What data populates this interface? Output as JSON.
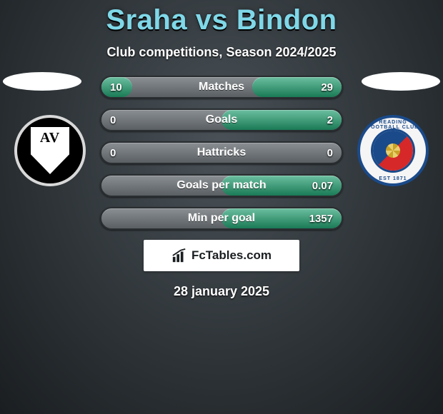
{
  "title": "Sraha vs Bindon",
  "subtitle": "Club competitions, Season 2024/2025",
  "date": "28 january 2025",
  "brand": "FcTables.com",
  "colors": {
    "accent": "#7fd8e8",
    "bar_fill": "#1a7a56",
    "bar_bg": "#6a6f73"
  },
  "crest_left": {
    "initials": "AV"
  },
  "crest_right": {
    "ring_top": "READING FOOTBALL CLUB",
    "ring_bottom": "EST 1871"
  },
  "stats": [
    {
      "label": "Matches",
      "left_text": "10",
      "right_text": "29",
      "left_pct": 25.6,
      "right_pct": 74.4
    },
    {
      "label": "Goals",
      "left_text": "0",
      "right_text": "2",
      "left_pct": 0,
      "right_pct": 100
    },
    {
      "label": "Hattricks",
      "left_text": "0",
      "right_text": "0",
      "left_pct": 0,
      "right_pct": 0
    },
    {
      "label": "Goals per match",
      "left_text": "",
      "right_text": "0.07",
      "left_pct": 0,
      "right_pct": 100
    },
    {
      "label": "Min per goal",
      "left_text": "",
      "right_text": "1357",
      "left_pct": 0,
      "right_pct": 100
    }
  ]
}
